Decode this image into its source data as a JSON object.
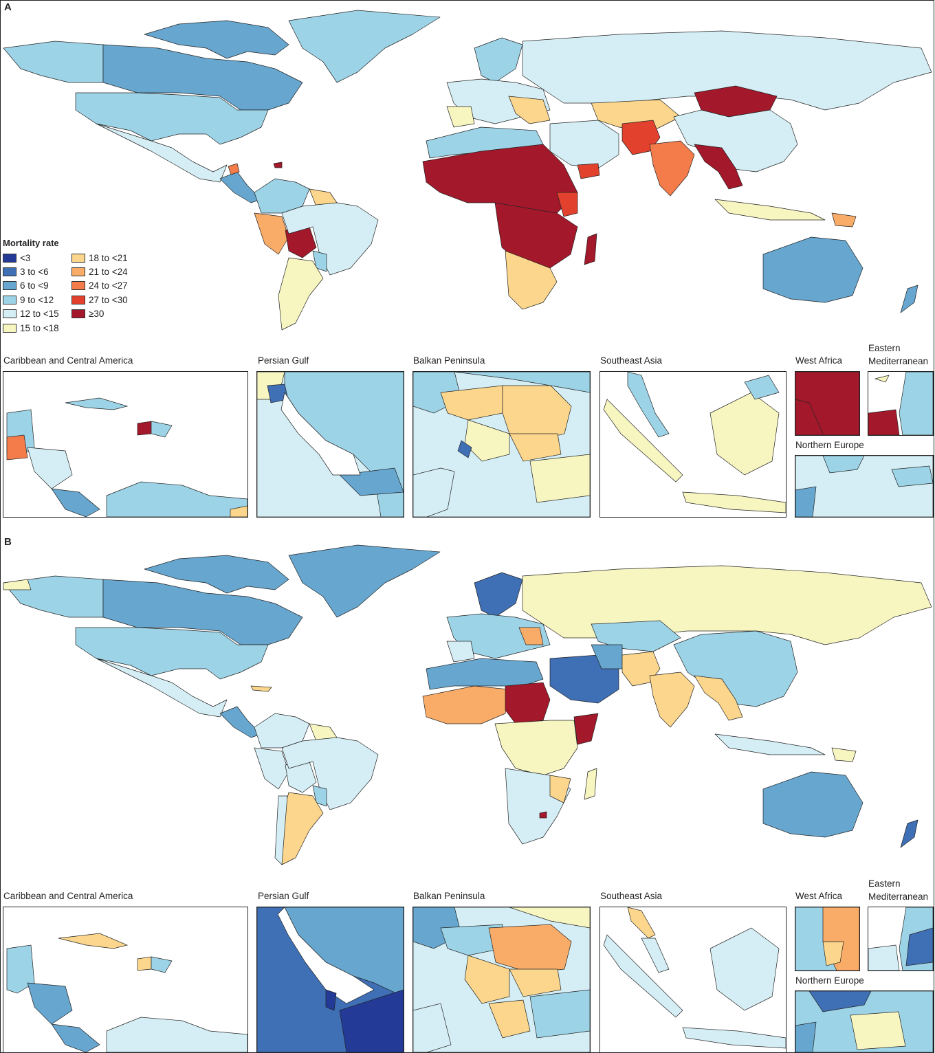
{
  "panels": [
    {
      "letter": "A"
    },
    {
      "letter": "B"
    }
  ],
  "legend": {
    "title": "Mortality rate",
    "items": [
      {
        "label": "<3",
        "color": "#233b96"
      },
      {
        "label": "3 to <6",
        "color": "#3f6fb5"
      },
      {
        "label": "6 to <9",
        "color": "#66a6cf"
      },
      {
        "label": "9 to <12",
        "color": "#9dd3e6"
      },
      {
        "label": "12 to <15",
        "color": "#d5eef5"
      },
      {
        "label": "15 to <18",
        "color": "#f7f5c0"
      },
      {
        "label": "18 to <21",
        "color": "#fbd68c"
      },
      {
        "label": "21 to <24",
        "color": "#f9ac68"
      },
      {
        "label": "24 to <27",
        "color": "#f47c4b"
      },
      {
        "label": "27 to <30",
        "color": "#e2412e"
      },
      {
        "label": "≥30",
        "color": "#a3182a"
      }
    ]
  },
  "insets": {
    "caribbean": "Caribbean and Central America",
    "persian_gulf": "Persian Gulf",
    "balkan": "Balkan Peninsula",
    "southeast_asia": "Southeast Asia",
    "west_africa": "West Africa",
    "eastern_med": "Eastern Mediterranean",
    "northern_europe": "Northern Europe"
  }
}
